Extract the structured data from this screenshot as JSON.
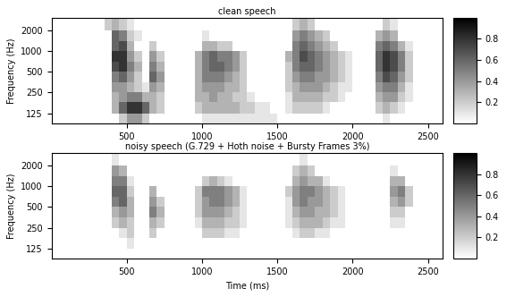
{
  "chart_data": [
    {
      "type": "heatmap",
      "title": "clean speech",
      "ylabel": "Frequency (Hz)",
      "log": "y",
      "xlim": [
        0,
        2600
      ],
      "xticks": [
        500,
        1000,
        1500,
        2000,
        2500
      ],
      "ylim": [
        90,
        3000
      ],
      "yticks": [
        125,
        250,
        500,
        1000,
        2000
      ],
      "x_edges": [
        0,
        50,
        100,
        150,
        200,
        250,
        300,
        350,
        400,
        450,
        500,
        550,
        600,
        650,
        700,
        750,
        800,
        850,
        900,
        950,
        1000,
        1050,
        1100,
        1150,
        1200,
        1250,
        1300,
        1350,
        1400,
        1450,
        1500,
        1550,
        1600,
        1650,
        1700,
        1750,
        1800,
        1850,
        1900,
        1950,
        2000,
        2050,
        2100,
        2150,
        2200,
        2250,
        2300,
        2350,
        2400,
        2450,
        2500,
        2550,
        2600
      ],
      "y_edges": [
        90,
        125,
        180,
        250,
        350,
        500,
        700,
        1000,
        1400,
        2000,
        3000
      ],
      "color_range": [
        0,
        1
      ],
      "color_ticks": [
        0.2,
        0.4,
        0.6,
        0.8
      ],
      "cells": [
        [
          0,
          0,
          0,
          0,
          0,
          0,
          0,
          0,
          0,
          0.2,
          0.4,
          0.4,
          0.2,
          0,
          0,
          0,
          0,
          0,
          0,
          0,
          0.1,
          0.1,
          0.1,
          0.1,
          0.1,
          0.1,
          0.1,
          0.1,
          0.1,
          0.1,
          0,
          0,
          0,
          0,
          0,
          0,
          0,
          0,
          0,
          0,
          0,
          0,
          0,
          0,
          0.1,
          0,
          0,
          0,
          0,
          0,
          0,
          0
        ],
        [
          0,
          0,
          0,
          0,
          0,
          0,
          0,
          0,
          0.3,
          0.6,
          0.8,
          0.8,
          0.6,
          0.3,
          0.2,
          0,
          0,
          0,
          0,
          0.2,
          0.3,
          0.3,
          0.3,
          0.3,
          0.3,
          0.2,
          0.2,
          0.1,
          0.1,
          0,
          0,
          0.1,
          0.2,
          0.2,
          0.2,
          0.2,
          0.1,
          0,
          0,
          0,
          0,
          0,
          0,
          0.2,
          0.3,
          0.2,
          0.1,
          0,
          0,
          0,
          0,
          0
        ],
        [
          0,
          0,
          0,
          0,
          0,
          0,
          0,
          0,
          0.3,
          0.4,
          0.5,
          0.5,
          0.3,
          0.3,
          0.2,
          0,
          0,
          0,
          0,
          0.3,
          0.3,
          0.4,
          0.3,
          0.3,
          0.2,
          0.2,
          0.1,
          0,
          0,
          0,
          0,
          0.1,
          0.3,
          0.3,
          0.3,
          0.3,
          0.2,
          0.2,
          0.1,
          0,
          0,
          0,
          0,
          0.3,
          0.4,
          0.4,
          0.2,
          0.1,
          0,
          0,
          0,
          0
        ],
        [
          0,
          0,
          0,
          0,
          0,
          0,
          0,
          0,
          0.4,
          0.4,
          0.3,
          0.2,
          0.1,
          0.4,
          0.3,
          0,
          0,
          0,
          0,
          0.3,
          0.4,
          0.4,
          0.4,
          0.3,
          0.3,
          0.2,
          0,
          0,
          0,
          0,
          0,
          0.2,
          0.3,
          0.4,
          0.4,
          0.4,
          0.3,
          0.2,
          0.1,
          0.1,
          0,
          0,
          0,
          0.4,
          0.5,
          0.5,
          0.3,
          0.1,
          0,
          0,
          0,
          0
        ],
        [
          0,
          0,
          0,
          0,
          0,
          0,
          0,
          0,
          0.5,
          0.6,
          0.4,
          0.2,
          0,
          0.6,
          0.4,
          0,
          0,
          0,
          0,
          0.3,
          0.5,
          0.5,
          0.5,
          0.4,
          0.3,
          0.2,
          0,
          0,
          0,
          0,
          0,
          0.2,
          0.4,
          0.5,
          0.5,
          0.4,
          0.4,
          0.3,
          0.2,
          0.1,
          0,
          0,
          0,
          0.5,
          0.7,
          0.6,
          0.4,
          0.2,
          0,
          0,
          0,
          0
        ],
        [
          0,
          0,
          0,
          0,
          0,
          0,
          0,
          0,
          0.7,
          0.8,
          0.5,
          0.3,
          0,
          0.5,
          0.3,
          0,
          0,
          0,
          0,
          0.3,
          0.5,
          0.6,
          0.6,
          0.5,
          0.4,
          0.2,
          0,
          0,
          0,
          0,
          0,
          0.2,
          0.5,
          0.6,
          0.6,
          0.5,
          0.4,
          0.3,
          0.2,
          0.1,
          0,
          0,
          0,
          0.6,
          0.8,
          0.7,
          0.5,
          0.2,
          0,
          0,
          0,
          0
        ],
        [
          0,
          0,
          0,
          0,
          0,
          0,
          0,
          0,
          0.8,
          0.8,
          0.4,
          0.2,
          0,
          0.4,
          0.2,
          0,
          0,
          0,
          0,
          0.3,
          0.5,
          0.6,
          0.5,
          0.5,
          0.4,
          0.2,
          0,
          0,
          0,
          0,
          0,
          0.3,
          0.5,
          0.7,
          0.6,
          0.5,
          0.4,
          0.3,
          0.2,
          0.1,
          0,
          0,
          0,
          0.6,
          0.8,
          0.7,
          0.5,
          0.2,
          0,
          0,
          0,
          0
        ],
        [
          0,
          0,
          0,
          0,
          0,
          0,
          0,
          0,
          0.6,
          0.7,
          0.3,
          0,
          0,
          0.2,
          0,
          0,
          0,
          0,
          0,
          0,
          0.3,
          0.3,
          0.2,
          0.2,
          0,
          0,
          0,
          0,
          0,
          0,
          0,
          0,
          0.5,
          0.6,
          0.5,
          0.4,
          0.3,
          0.2,
          0,
          0,
          0,
          0,
          0,
          0.5,
          0.6,
          0.5,
          0.3,
          0.1,
          0,
          0,
          0,
          0
        ],
        [
          0,
          0,
          0,
          0,
          0,
          0,
          0,
          0,
          0.6,
          0.5,
          0.2,
          0.1,
          0,
          0,
          0,
          0,
          0,
          0,
          0,
          0,
          0.1,
          0,
          0,
          0,
          0,
          0,
          0,
          0,
          0,
          0,
          0,
          0,
          0.4,
          0.5,
          0.4,
          0.3,
          0.2,
          0,
          0,
          0,
          0,
          0,
          0,
          0.3,
          0.4,
          0.3,
          0,
          0,
          0,
          0,
          0,
          0
        ],
        [
          0,
          0,
          0,
          0,
          0,
          0,
          0,
          0.2,
          0.3,
          0.2,
          0.1,
          0,
          0,
          0,
          0,
          0,
          0,
          0,
          0,
          0,
          0,
          0,
          0,
          0,
          0,
          0,
          0,
          0,
          0,
          0,
          0,
          0,
          0.2,
          0.3,
          0.2,
          0,
          0,
          0,
          0,
          0,
          0,
          0,
          0,
          0,
          0.2,
          0.1,
          0,
          0,
          0,
          0,
          0,
          0
        ]
      ]
    },
    {
      "type": "heatmap",
      "title": "noisy speech (G.729 + Hoth noise + Bursty Frames 3%)",
      "xlabel": "Time (ms)",
      "ylabel": "Frequency (Hz)",
      "log": "y",
      "xlim": [
        0,
        2600
      ],
      "xticks": [
        500,
        1000,
        1500,
        2000,
        2500
      ],
      "ylim": [
        90,
        3000
      ],
      "yticks": [
        125,
        250,
        500,
        1000,
        2000
      ],
      "x_edges": [
        0,
        50,
        100,
        150,
        200,
        250,
        300,
        350,
        400,
        450,
        500,
        550,
        600,
        650,
        700,
        750,
        800,
        850,
        900,
        950,
        1000,
        1050,
        1100,
        1150,
        1200,
        1250,
        1300,
        1350,
        1400,
        1450,
        1500,
        1550,
        1600,
        1650,
        1700,
        1750,
        1800,
        1850,
        1900,
        1950,
        2000,
        2050,
        2100,
        2150,
        2200,
        2250,
        2300,
        2350,
        2400,
        2450,
        2500,
        2550,
        2600
      ],
      "y_edges": [
        90,
        125,
        180,
        250,
        350,
        500,
        700,
        1000,
        1400,
        2000,
        3000
      ],
      "color_range": [
        0,
        1
      ],
      "color_ticks": [
        0.2,
        0.4,
        0.6,
        0.8
      ],
      "cells": [
        [
          0,
          0,
          0,
          0,
          0,
          0,
          0,
          0,
          0,
          0,
          0,
          0,
          0,
          0,
          0,
          0,
          0,
          0,
          0,
          0,
          0,
          0,
          0,
          0,
          0,
          0,
          0,
          0,
          0,
          0,
          0,
          0,
          0,
          0,
          0,
          0,
          0,
          0,
          0,
          0,
          0,
          0,
          0,
          0,
          0,
          0,
          0,
          0,
          0,
          0,
          0,
          0
        ],
        [
          0,
          0,
          0,
          0,
          0,
          0,
          0,
          0,
          0,
          0,
          0.1,
          0,
          0,
          0,
          0,
          0,
          0,
          0,
          0,
          0,
          0,
          0,
          0,
          0,
          0,
          0,
          0,
          0,
          0,
          0,
          0,
          0,
          0,
          0,
          0,
          0,
          0,
          0,
          0,
          0,
          0,
          0,
          0,
          0,
          0,
          0,
          0,
          0,
          0,
          0,
          0,
          0
        ],
        [
          0,
          0,
          0,
          0,
          0,
          0,
          0,
          0,
          0,
          0.1,
          0.2,
          0,
          0,
          0.2,
          0,
          0,
          0,
          0,
          0,
          0,
          0.2,
          0.2,
          0.2,
          0.1,
          0.1,
          0,
          0,
          0,
          0,
          0,
          0,
          0,
          0.1,
          0.2,
          0.2,
          0.1,
          0.1,
          0,
          0,
          0,
          0,
          0,
          0,
          0,
          0,
          0,
          0,
          0,
          0,
          0,
          0,
          0
        ],
        [
          0,
          0,
          0,
          0,
          0,
          0,
          0,
          0,
          0.2,
          0.3,
          0.2,
          0,
          0,
          0.3,
          0.2,
          0,
          0,
          0,
          0,
          0.1,
          0.3,
          0.3,
          0.3,
          0.2,
          0.2,
          0.1,
          0,
          0,
          0,
          0,
          0,
          0.1,
          0.2,
          0.3,
          0.3,
          0.3,
          0.2,
          0.1,
          0.1,
          0,
          0,
          0,
          0,
          0,
          0,
          0.1,
          0.1,
          0,
          0,
          0,
          0,
          0
        ],
        [
          0,
          0,
          0,
          0,
          0,
          0,
          0,
          0,
          0.3,
          0.4,
          0.3,
          0,
          0,
          0.5,
          0.3,
          0,
          0,
          0,
          0,
          0.2,
          0.4,
          0.4,
          0.4,
          0.3,
          0.2,
          0.1,
          0,
          0,
          0,
          0,
          0,
          0.1,
          0.3,
          0.4,
          0.4,
          0.3,
          0.3,
          0.2,
          0.1,
          0,
          0,
          0,
          0,
          0,
          0,
          0.2,
          0.2,
          0,
          0,
          0,
          0,
          0
        ],
        [
          0,
          0,
          0,
          0,
          0,
          0,
          0,
          0,
          0.5,
          0.6,
          0.3,
          0,
          0,
          0.4,
          0.2,
          0,
          0,
          0,
          0,
          0.2,
          0.4,
          0.5,
          0.5,
          0.4,
          0.3,
          0.1,
          0,
          0,
          0,
          0,
          0,
          0.1,
          0.4,
          0.5,
          0.4,
          0.4,
          0.3,
          0.2,
          0.1,
          0,
          0,
          0,
          0,
          0,
          0,
          0.3,
          0.4,
          0.2,
          0,
          0,
          0,
          0
        ],
        [
          0,
          0,
          0,
          0,
          0,
          0,
          0,
          0,
          0.6,
          0.6,
          0.2,
          0,
          0,
          0.3,
          0,
          0,
          0,
          0,
          0,
          0.2,
          0.5,
          0.5,
          0.5,
          0.4,
          0.3,
          0.1,
          0,
          0,
          0,
          0,
          0,
          0.2,
          0.4,
          0.5,
          0.5,
          0.4,
          0.3,
          0.2,
          0.1,
          0,
          0,
          0,
          0,
          0,
          0,
          0.4,
          0.5,
          0.2,
          0,
          0,
          0,
          0
        ],
        [
          0,
          0,
          0,
          0,
          0,
          0,
          0,
          0,
          0.5,
          0.5,
          0.1,
          0,
          0,
          0,
          0,
          0,
          0,
          0,
          0,
          0,
          0.2,
          0.3,
          0.2,
          0.1,
          0,
          0,
          0,
          0,
          0,
          0,
          0,
          0,
          0.3,
          0.4,
          0.3,
          0.3,
          0.1,
          0,
          0,
          0,
          0,
          0,
          0,
          0,
          0,
          0.3,
          0.3,
          0,
          0,
          0,
          0,
          0
        ],
        [
          0,
          0,
          0,
          0,
          0,
          0,
          0,
          0,
          0.4,
          0.3,
          0,
          0,
          0,
          0,
          0,
          0,
          0,
          0,
          0,
          0,
          0,
          0,
          0,
          0,
          0,
          0,
          0,
          0,
          0,
          0,
          0,
          0,
          0.2,
          0.3,
          0.2,
          0,
          0,
          0,
          0,
          0,
          0,
          0,
          0,
          0,
          0,
          0.1,
          0,
          0,
          0,
          0,
          0,
          0
        ],
        [
          0,
          0,
          0,
          0,
          0,
          0,
          0,
          0,
          0.1,
          0,
          0,
          0,
          0,
          0,
          0,
          0,
          0,
          0,
          0,
          0,
          0,
          0,
          0,
          0,
          0,
          0,
          0,
          0,
          0,
          0,
          0,
          0,
          0,
          0.1,
          0,
          0,
          0,
          0,
          0,
          0,
          0,
          0,
          0,
          0,
          0,
          0,
          0,
          0,
          0,
          0,
          0,
          0
        ]
      ]
    }
  ]
}
